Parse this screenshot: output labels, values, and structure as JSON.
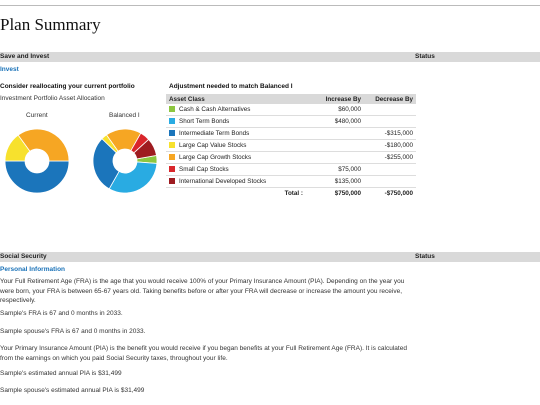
{
  "page_title": "Plan Summary",
  "save_section": {
    "header": "Save and Invest",
    "status": "Status",
    "subheader": "Invest"
  },
  "reallocate": {
    "heading": "Consider reallocating your current portfolio",
    "subheading": "Investment Portfolio Asset Allocation",
    "labels": {
      "current": "Current",
      "balanced": "Balanced I"
    }
  },
  "adjustment": {
    "heading": "Adjustment needed to match Balanced I",
    "columns": [
      "Asset Class",
      "Increase By",
      "Decrease By"
    ],
    "rows": [
      {
        "asset": "Cash & Cash Alternatives",
        "color": "#8dc63f",
        "increase": "$60,000",
        "decrease": ""
      },
      {
        "asset": "Short Term Bonds",
        "color": "#29abe2",
        "increase": "$480,000",
        "decrease": ""
      },
      {
        "asset": "Intermediate Term Bonds",
        "color": "#1b75bb",
        "increase": "",
        "decrease": "-$315,000"
      },
      {
        "asset": "Large Cap Value Stocks",
        "color": "#f7e12d",
        "increase": "",
        "decrease": "-$180,000"
      },
      {
        "asset": "Large Cap Growth Stocks",
        "color": "#f6a623",
        "increase": "",
        "decrease": "-$255,000"
      },
      {
        "asset": "Small Cap Stocks",
        "color": "#d9262b",
        "increase": "$75,000",
        "decrease": ""
      },
      {
        "asset": "International Developed Stocks",
        "color": "#9e1b20",
        "increase": "$135,000",
        "decrease": ""
      }
    ],
    "total": {
      "label": "Total :",
      "increase": "$750,000",
      "decrease": "-$750,000"
    }
  },
  "chart_data": [
    {
      "type": "pie",
      "title": "Current",
      "categories": [
        "Intermediate Term Bonds",
        "Large Cap Value Stocks",
        "Large Cap Growth Stocks"
      ],
      "values": [
        50,
        15,
        35
      ]
    },
    {
      "type": "pie",
      "title": "Balanced I",
      "categories": [
        "Cash & Cash Alternatives",
        "Short Term Bonds",
        "Intermediate Term Bonds",
        "Large Cap Value Stocks",
        "Large Cap Growth Stocks",
        "Small Cap Stocks",
        "International Developed Stocks"
      ],
      "values": [
        4,
        32,
        29,
        3,
        18,
        5,
        9
      ]
    }
  ],
  "social_section": {
    "header": "Social Security",
    "status": "Status",
    "subheader": "Personal Information"
  },
  "paragraphs": [
    "Your Full Retirement Age (FRA) is the age that you would receive 100% of your Primary Insurance Amount (PIA). Depending on the year you were born, your FRA is between 65-67 years old. Taking benefits before or after your FRA will decrease or increase the amount you receive, respectively.",
    "Sample's FRA is 67 and 0 months in 2033.",
    "Sample spouse's FRA is 67 and 0 months in 2033.",
    "Your Primary Insurance Amount (PIA) is the benefit you would receive if you began benefits at your Full Retirement Age (FRA). It is calculated from the earnings on which you paid Social Security taxes, throughout your life.",
    "Sample's estimated annual PIA is $31,499",
    "Sample spouse's estimated annual PIA is $31,499"
  ],
  "colors": {
    "cash": "#8dc63f",
    "short_bonds": "#29abe2",
    "int_bonds": "#1b75bb",
    "lc_value": "#f7e12d",
    "lc_growth": "#f6a623",
    "small_cap": "#d9262b",
    "intl": "#9e1b20"
  }
}
